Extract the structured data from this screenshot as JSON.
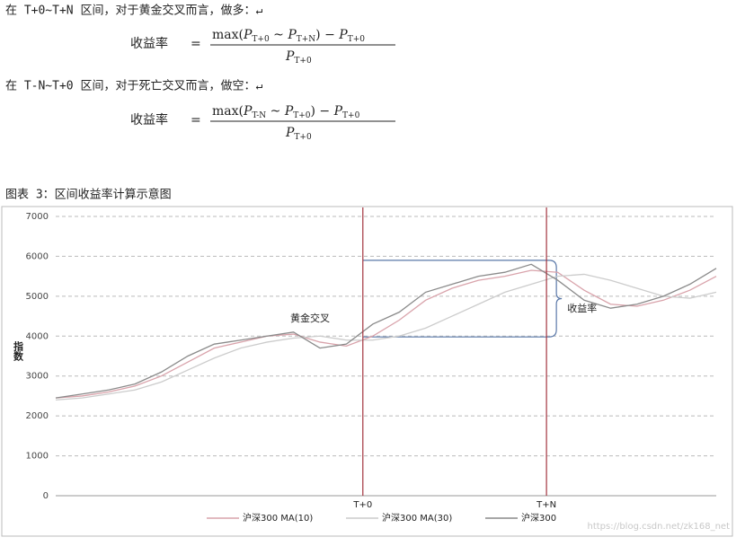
{
  "intro_1": "在 T+0~T+N 区间，对于黄金交叉而言，做多：↵",
  "formula_1": {
    "lhs": "收益率",
    "eq": "=",
    "numerator": [
      "max(",
      {
        "base": "P",
        "sub": "T+0"
      },
      " ~ ",
      {
        "base": "P",
        "sub": "T+N"
      },
      ") − ",
      {
        "base": "P",
        "sub": "T+0"
      }
    ],
    "denominator": {
      "base": "P",
      "sub": "T+0"
    }
  },
  "intro_2": "在 T-N~T+0 区间，对于死亡交叉而言，做空：↵",
  "formula_2": {
    "lhs": "收益率",
    "eq": "=",
    "numerator": [
      "max(",
      {
        "base": "P",
        "sub": "T-N"
      },
      " ~ ",
      {
        "base": "P",
        "sub": "T+0"
      },
      ") − ",
      {
        "base": "P",
        "sub": "T+0"
      }
    ],
    "denominator": {
      "base": "P",
      "sub": "T+0"
    }
  },
  "caption": "图表 3：区间收益率计算示意图",
  "chart_data": {
    "type": "line",
    "y_label": "指数",
    "x": [
      0,
      4,
      8,
      12,
      16,
      20,
      24,
      28,
      32,
      36,
      40,
      44,
      48,
      52,
      56,
      60,
      64,
      68,
      72,
      76,
      80,
      84,
      88,
      92,
      96,
      100
    ],
    "xlim": [
      0,
      100
    ],
    "ylim": [
      0,
      7000
    ],
    "yticks": [
      0,
      1000,
      2000,
      3000,
      4000,
      5000,
      6000,
      7000
    ],
    "grid": true,
    "series": [
      {
        "name": "沪深300 MA(10)",
        "color": "#d9a3ab",
        "values": [
          2450,
          2500,
          2600,
          2750,
          3000,
          3350,
          3700,
          3850,
          4000,
          4050,
          3850,
          3750,
          4000,
          4400,
          4900,
          5200,
          5400,
          5500,
          5650,
          5600,
          5150,
          4800,
          4750,
          4900,
          5150,
          5500
        ]
      },
      {
        "name": "沪深300 MA(30)",
        "color": "#cccccc",
        "values": [
          2400,
          2450,
          2550,
          2650,
          2850,
          3150,
          3450,
          3700,
          3850,
          3950,
          4000,
          3900,
          3900,
          4000,
          4200,
          4500,
          4800,
          5100,
          5300,
          5500,
          5550,
          5400,
          5200,
          5000,
          4950,
          5100
        ]
      },
      {
        "name": "沪深300",
        "color": "#8a8a8a",
        "values": [
          2450,
          2550,
          2650,
          2800,
          3100,
          3500,
          3800,
          3900,
          4000,
          4100,
          3700,
          3800,
          4300,
          4600,
          5100,
          5300,
          5500,
          5600,
          5800,
          5400,
          4900,
          4700,
          4800,
          5000,
          5300,
          5700
        ]
      }
    ],
    "markers": [
      {
        "x": 46.5,
        "label": "T+0"
      },
      {
        "x": 74.3,
        "label": "T+N"
      }
    ],
    "marker_color": "#a3343f",
    "bracket": {
      "x": [
        46.5,
        75.8
      ],
      "y": [
        3980,
        5900
      ],
      "color": "#5a78a8"
    },
    "annotations": [
      {
        "text": "黄金交叉",
        "x": 38.5,
        "y": 4430
      },
      {
        "text": "收益率",
        "x": 79.7,
        "y": 4680
      }
    ],
    "watermark": "https://blog.csdn.net/zk168_net"
  }
}
